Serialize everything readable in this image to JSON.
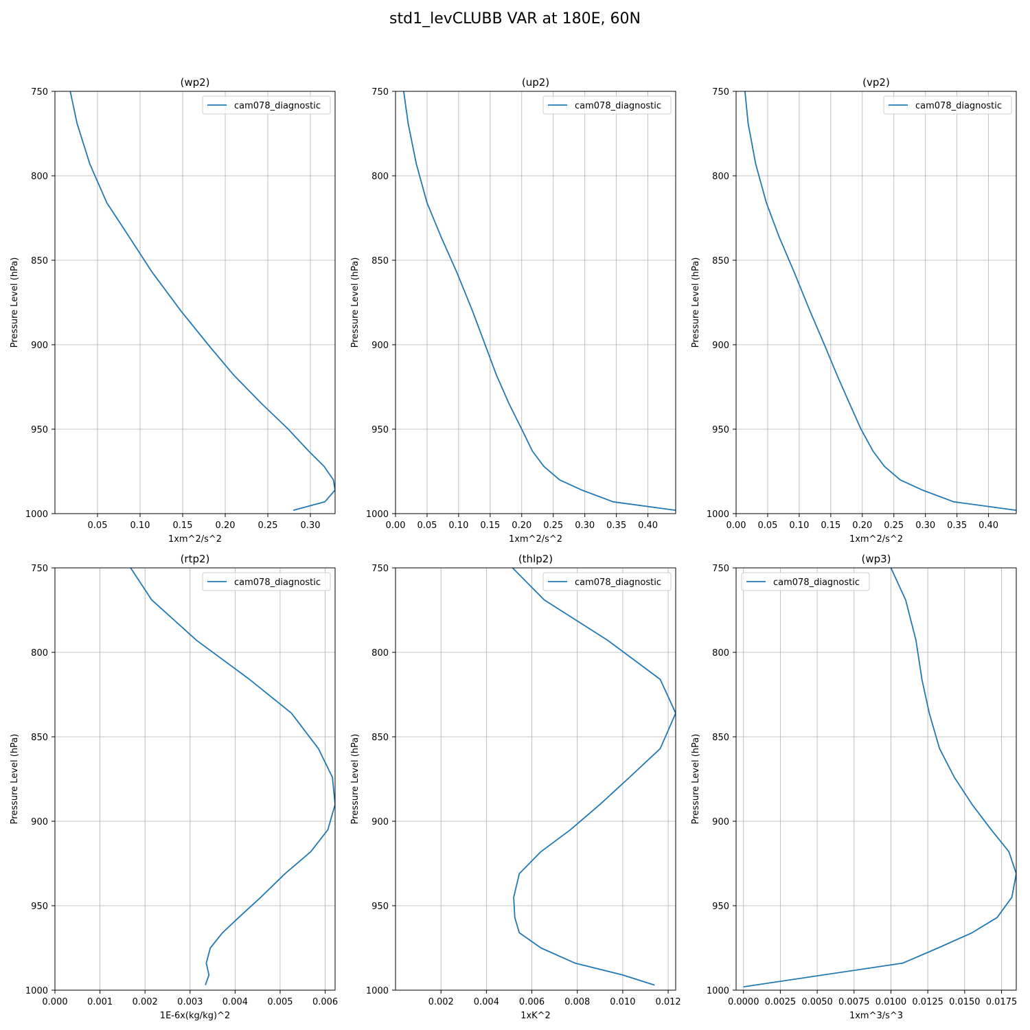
{
  "figure_title": "std1_levCLUBB VAR at 180E, 60N",
  "chart_data": [
    {
      "type": "line",
      "title": "(wp2)",
      "xlabel": "1xm^2/s^2",
      "ylabel": "Pressure Level (hPa)",
      "xlim": [
        0.0,
        0.329
      ],
      "ylim": [
        1000,
        750
      ],
      "x_ticks": [
        0.05,
        0.1,
        0.15,
        0.2,
        0.25,
        0.3
      ],
      "x_tick_labels": [
        "0.05",
        "0.10",
        "0.15",
        "0.20",
        "0.25",
        "0.30"
      ],
      "y_ticks": [
        750,
        800,
        850,
        900,
        950,
        1000
      ],
      "y_tick_labels": [
        "750",
        "800",
        "850",
        "900",
        "950",
        "1000"
      ],
      "grid": true,
      "legend_position": "top-right",
      "series": [
        {
          "name": "cam078_diagnostic",
          "color": "#1f77b4",
          "x": [
            0.018,
            0.026,
            0.041,
            0.061,
            0.087,
            0.114,
            0.148,
            0.18,
            0.21,
            0.243,
            0.274,
            0.298,
            0.316,
            0.327,
            0.329,
            0.317,
            0.28
          ],
          "y": [
            750,
            769,
            793,
            816,
            836,
            857,
            880,
            900,
            918,
            935,
            950,
            963,
            972,
            980,
            986,
            993,
            998
          ]
        }
      ]
    },
    {
      "type": "line",
      "title": "(up2)",
      "xlabel": "1xm^2/s^2",
      "ylabel": "Pressure Level (hPa)",
      "xlim": [
        0.0,
        0.444
      ],
      "ylim": [
        1000,
        750
      ],
      "x_ticks": [
        0.0,
        0.05,
        0.1,
        0.15,
        0.2,
        0.25,
        0.3,
        0.35,
        0.4
      ],
      "x_tick_labels": [
        "0.00",
        "0.05",
        "0.10",
        "0.15",
        "0.20",
        "0.25",
        "0.30",
        "0.35",
        "0.40"
      ],
      "y_ticks": [
        750,
        800,
        850,
        900,
        950,
        1000
      ],
      "y_tick_labels": [
        "750",
        "800",
        "850",
        "900",
        "950",
        "1000"
      ],
      "grid": true,
      "legend_position": "top-right",
      "series": [
        {
          "name": "cam078_diagnostic",
          "color": "#1f77b4",
          "x": [
            0.013,
            0.02,
            0.033,
            0.05,
            0.072,
            0.097,
            0.122,
            0.142,
            0.16,
            0.18,
            0.2,
            0.217,
            0.235,
            0.26,
            0.295,
            0.345,
            0.444
          ],
          "y": [
            750,
            769,
            793,
            816,
            836,
            857,
            880,
            900,
            918,
            935,
            950,
            963,
            972,
            980,
            986,
            993,
            998
          ]
        }
      ]
    },
    {
      "type": "line",
      "title": "(vp2)",
      "xlabel": "1xm^2/s^2",
      "ylabel": "Pressure Level (hPa)",
      "xlim": [
        0.0,
        0.444
      ],
      "ylim": [
        1000,
        750
      ],
      "x_ticks": [
        0.0,
        0.05,
        0.1,
        0.15,
        0.2,
        0.25,
        0.3,
        0.35,
        0.4
      ],
      "x_tick_labels": [
        "0.00",
        "0.05",
        "0.10",
        "0.15",
        "0.20",
        "0.25",
        "0.30",
        "0.35",
        "0.40"
      ],
      "y_ticks": [
        750,
        800,
        850,
        900,
        950,
        1000
      ],
      "y_tick_labels": [
        "750",
        "800",
        "850",
        "900",
        "950",
        "1000"
      ],
      "grid": true,
      "legend_position": "top-right",
      "series": [
        {
          "name": "cam078_diagnostic",
          "color": "#1f77b4",
          "x": [
            0.014,
            0.019,
            0.031,
            0.048,
            0.068,
            0.092,
            0.117,
            0.14,
            0.16,
            0.18,
            0.198,
            0.217,
            0.235,
            0.26,
            0.295,
            0.345,
            0.444
          ],
          "y": [
            750,
            769,
            793,
            816,
            836,
            857,
            880,
            900,
            918,
            935,
            950,
            963,
            972,
            980,
            986,
            993,
            998
          ]
        }
      ]
    },
    {
      "type": "line",
      "title": "(rtp2)",
      "xlabel": "1E-6x(kg/kg)^2",
      "ylabel": "Pressure Level (hPa)",
      "xlim": [
        0.0,
        0.00622
      ],
      "ylim": [
        1000,
        750
      ],
      "x_ticks": [
        0.0,
        0.001,
        0.002,
        0.003,
        0.004,
        0.005,
        0.006
      ],
      "x_tick_labels": [
        "0.000",
        "0.001",
        "0.002",
        "0.003",
        "0.004",
        "0.005",
        "0.006"
      ],
      "y_ticks": [
        750,
        800,
        850,
        900,
        950,
        1000
      ],
      "y_tick_labels": [
        "750",
        "800",
        "850",
        "900",
        "950",
        "1000"
      ],
      "grid": true,
      "legend_position": "top-right",
      "series": [
        {
          "name": "cam078_diagnostic",
          "color": "#1f77b4",
          "x": [
            0.00168,
            0.00215,
            0.00315,
            0.00432,
            0.00525,
            0.00585,
            0.00616,
            0.00622,
            0.00606,
            0.00568,
            0.00511,
            0.00457,
            0.00408,
            0.00372,
            0.00345,
            0.00336,
            0.00342,
            0.00334
          ],
          "y": [
            750,
            769,
            793,
            816,
            836,
            857,
            874,
            890,
            905,
            918,
            931,
            945,
            957,
            966,
            975,
            984,
            991,
            997
          ]
        }
      ]
    },
    {
      "type": "line",
      "title": "(thlp2)",
      "xlabel": "1xK^2",
      "ylabel": "Pressure Level (hPa)",
      "xlim": [
        0.0,
        0.01233
      ],
      "ylim": [
        1000,
        750
      ],
      "x_ticks": [
        0.002,
        0.004,
        0.006,
        0.008,
        0.01,
        0.012
      ],
      "x_tick_labels": [
        "0.002",
        "0.004",
        "0.006",
        "0.008",
        "0.010",
        "0.012"
      ],
      "y_ticks": [
        750,
        800,
        850,
        900,
        950,
        1000
      ],
      "y_tick_labels": [
        "750",
        "800",
        "850",
        "900",
        "950",
        "1000"
      ],
      "grid": true,
      "legend_position": "top-right",
      "series": [
        {
          "name": "cam078_diagnostic",
          "color": "#1f77b4",
          "x": [
            0.00515,
            0.00655,
            0.00935,
            0.01165,
            0.01233,
            0.01165,
            0.0103,
            0.009,
            0.0077,
            0.0064,
            0.00545,
            0.0052,
            0.00525,
            0.00545,
            0.0064,
            0.0079,
            0.01,
            0.0114
          ],
          "y": [
            750,
            769,
            793,
            816,
            836,
            857,
            874,
            890,
            905,
            918,
            931,
            945,
            957,
            966,
            975,
            984,
            991,
            997
          ]
        }
      ]
    },
    {
      "type": "line",
      "title": "(wp3)",
      "xlabel": "1xm^3/s^3",
      "ylabel": "Pressure Level (hPa)",
      "xlim": [
        -0.0005,
        0.0185
      ],
      "ylim": [
        1000,
        750
      ],
      "x_ticks": [
        0.0,
        0.0025,
        0.005,
        0.0075,
        0.01,
        0.0125,
        0.015,
        0.0175
      ],
      "x_tick_labels": [
        "0.0000",
        "0.0025",
        "0.0050",
        "0.0075",
        "0.0100",
        "0.0125",
        "0.0150",
        "0.0175"
      ],
      "y_ticks": [
        750,
        800,
        850,
        900,
        950,
        1000
      ],
      "y_tick_labels": [
        "750",
        "800",
        "850",
        "900",
        "950",
        "1000"
      ],
      "grid": true,
      "legend_position": "top-left",
      "series": [
        {
          "name": "cam078_diagnostic",
          "color": "#1f77b4",
          "x": [
            0.01,
            0.011,
            0.0117,
            0.0121,
            0.0126,
            0.0133,
            0.0143,
            0.0155,
            0.0168,
            0.018,
            0.0185,
            0.0182,
            0.0172,
            0.0155,
            0.0132,
            0.0108,
            0.0
          ],
          "y": [
            750,
            769,
            793,
            816,
            836,
            857,
            874,
            890,
            905,
            918,
            931,
            945,
            957,
            966,
            975,
            984,
            998
          ]
        }
      ]
    }
  ]
}
